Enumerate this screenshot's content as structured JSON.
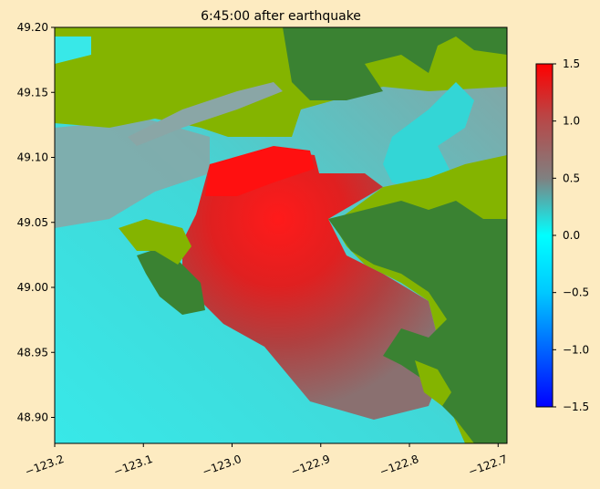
{
  "chart_data": {
    "type": "heatmap",
    "title": "6:45:00 after earthquake",
    "xlabel": "",
    "ylabel": "",
    "xlim": [
      -123.2,
      -122.69
    ],
    "ylim": [
      48.88,
      49.2
    ],
    "xticks": [
      -123.2,
      -123.1,
      -123.0,
      -122.9,
      -122.8,
      -122.7
    ],
    "xtick_labels": [
      "−123.2",
      "−123.1",
      "−123.0",
      "−122.9",
      "−122.8",
      "−122.7"
    ],
    "yticks": [
      48.9,
      48.95,
      49.0,
      49.05,
      49.1,
      49.15,
      49.2
    ],
    "ytick_labels": [
      "48.90",
      "48.95",
      "49.00",
      "49.05",
      "49.10",
      "49.15",
      "49.20"
    ],
    "colorbar": {
      "min": -1.5,
      "max": 1.5,
      "ticks": [
        -1.5,
        -1.0,
        -0.5,
        0.0,
        0.5,
        1.0,
        1.5
      ],
      "tick_labels": [
        "−1.5",
        "−1.0",
        "−0.5",
        "0.0",
        "0.5",
        "1.0",
        "1.5"
      ],
      "colors": [
        "#0000ff",
        "#00ffff",
        "#808080",
        "#ff0000"
      ]
    },
    "land_colors": [
      "#3a8232",
      "#84b400"
    ],
    "grid": false
  }
}
